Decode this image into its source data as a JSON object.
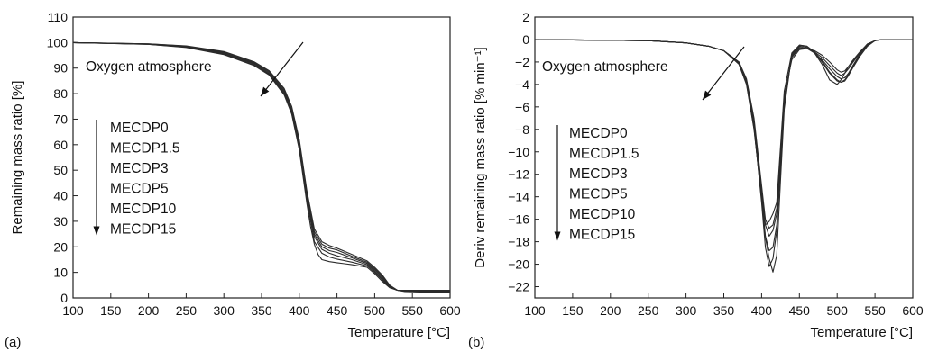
{
  "chart_data": [
    {
      "type": "line",
      "panel_label": "(a)",
      "xlabel": "Temperature [°C]",
      "ylabel": "Remaining mass ratio [%]",
      "xlim": [
        100,
        600
      ],
      "ylim": [
        0,
        110
      ],
      "xticks": [
        100,
        150,
        200,
        250,
        300,
        350,
        400,
        450,
        500,
        550,
        600
      ],
      "yticks": [
        0,
        10,
        20,
        30,
        40,
        50,
        60,
        70,
        80,
        90,
        100,
        110
      ],
      "grid": false,
      "annotation": "Oxygen atmosphere",
      "legend_placement": "left-middle",
      "legend_entries": [
        "MECDP0",
        "MECDP1.5",
        "MECDP3",
        "MECDP5",
        "MECDP10",
        "MECDP15"
      ],
      "line_color": "#2b2b2b",
      "series": [
        {
          "x": [
            100,
            200,
            250,
            300,
            340,
            360,
            380,
            390,
            400,
            410,
            420,
            430,
            440,
            450,
            470,
            490,
            500,
            510,
            520,
            530,
            540,
            560,
            600
          ],
          "y": [
            100,
            99.5,
            98.7,
            96.5,
            92.5,
            89,
            82,
            75,
            62,
            42,
            27,
            22,
            20.5,
            19.5,
            17,
            14.5,
            12,
            9,
            5,
            3,
            2.5,
            2.3,
            2.2
          ]
        },
        {
          "x": [
            100,
            200,
            250,
            300,
            340,
            360,
            380,
            390,
            400,
            410,
            420,
            430,
            440,
            450,
            470,
            490,
            500,
            510,
            520,
            530,
            540,
            560,
            600
          ],
          "y": [
            100,
            99.5,
            98.6,
            96.3,
            92.2,
            88.6,
            81.5,
            74,
            61,
            41,
            26,
            21,
            19.5,
            18.8,
            16.3,
            14,
            11.5,
            8.5,
            4.8,
            3,
            2.6,
            2.4,
            2.3
          ]
        },
        {
          "x": [
            100,
            200,
            250,
            300,
            340,
            360,
            380,
            390,
            400,
            410,
            420,
            430,
            440,
            450,
            470,
            490,
            500,
            510,
            520,
            530,
            540,
            560,
            600
          ],
          "y": [
            100,
            99.4,
            98.5,
            96,
            91.9,
            88.2,
            81,
            73.5,
            60,
            40,
            25,
            20,
            18.5,
            17.8,
            15.7,
            13.5,
            11,
            8,
            4.5,
            3,
            2.7,
            2.6,
            2.5
          ]
        },
        {
          "x": [
            100,
            200,
            250,
            300,
            340,
            360,
            380,
            390,
            400,
            410,
            420,
            430,
            440,
            450,
            470,
            490,
            500,
            510,
            520,
            530,
            540,
            560,
            600
          ],
          "y": [
            100,
            99.4,
            98.4,
            95.8,
            91.6,
            87.8,
            80.5,
            73,
            59,
            39.5,
            24,
            19,
            17.5,
            16.5,
            15,
            13,
            10.5,
            7.5,
            4.3,
            3,
            2.8,
            2.7,
            2.7
          ]
        },
        {
          "x": [
            100,
            200,
            250,
            300,
            340,
            360,
            380,
            390,
            400,
            410,
            420,
            430,
            440,
            450,
            470,
            490,
            500,
            510,
            520,
            530,
            540,
            560,
            600
          ],
          "y": [
            100,
            99.3,
            98.2,
            95.5,
            91.2,
            87.5,
            80,
            72.5,
            58.5,
            38.5,
            22,
            17.5,
            16,
            15.2,
            14,
            12.5,
            10,
            7,
            4.2,
            3,
            2.9,
            2.8,
            2.8
          ]
        },
        {
          "x": [
            100,
            200,
            250,
            300,
            340,
            360,
            380,
            390,
            400,
            410,
            415,
            420,
            425,
            430,
            440,
            450,
            470,
            490,
            500,
            510,
            520,
            530,
            540,
            560,
            600
          ],
          "y": [
            100,
            99.3,
            98.1,
            95.3,
            91,
            87.3,
            79.5,
            72,
            58,
            37,
            28,
            21,
            17,
            15,
            14.2,
            13.8,
            13,
            12,
            9.5,
            6.5,
            4,
            3,
            3,
            3,
            3
          ]
        }
      ]
    },
    {
      "type": "line",
      "panel_label": "(b)",
      "xlabel": "Temperature [°C]",
      "ylabel": "Deriv remaining mass ratio [% min⁻¹]",
      "xlim": [
        100,
        600
      ],
      "ylim": [
        -23,
        2
      ],
      "xticks": [
        100,
        150,
        200,
        250,
        300,
        350,
        400,
        450,
        500,
        550,
        600
      ],
      "yticks": [
        2,
        0,
        -2,
        -4,
        -6,
        -8,
        -10,
        -12,
        -14,
        -16,
        -18,
        -20,
        -22
      ],
      "grid": false,
      "annotation": "Oxygen atmosphere",
      "legend_placement": "left-middle",
      "legend_entries": [
        "MECDP0",
        "MECDP1.5",
        "MECDP3",
        "MECDP5",
        "MECDP10",
        "MECDP15"
      ],
      "line_color": "#2b2b2b",
      "series": [
        {
          "x": [
            100,
            250,
            300,
            330,
            350,
            370,
            380,
            390,
            400,
            405,
            410,
            415,
            420,
            425,
            430,
            440,
            450,
            460,
            470,
            480,
            490,
            500,
            505,
            510,
            515,
            520,
            530,
            540,
            550,
            560,
            600
          ],
          "y": [
            0,
            -0.1,
            -0.3,
            -0.6,
            -1,
            -2,
            -3.5,
            -7,
            -13,
            -16,
            -16.8,
            -16.5,
            -15,
            -10,
            -5,
            -1.8,
            -0.9,
            -0.8,
            -1,
            -1.4,
            -2,
            -2.7,
            -2.9,
            -2.8,
            -2.4,
            -2,
            -1.2,
            -0.4,
            -0.1,
            0,
            0
          ]
        },
        {
          "x": [
            100,
            250,
            300,
            330,
            350,
            370,
            380,
            390,
            400,
            405,
            410,
            415,
            420,
            425,
            430,
            440,
            450,
            460,
            470,
            480,
            490,
            500,
            505,
            510,
            515,
            520,
            530,
            540,
            550,
            560,
            600
          ],
          "y": [
            0,
            -0.1,
            -0.3,
            -0.6,
            -1,
            -2,
            -3.6,
            -7.2,
            -13.5,
            -16.5,
            -17.5,
            -17,
            -15.5,
            -10.5,
            -5.2,
            -1.6,
            -0.8,
            -0.8,
            -1.1,
            -1.6,
            -2.3,
            -3,
            -3.2,
            -3,
            -2.6,
            -2.1,
            -1.2,
            -0.4,
            -0.1,
            0,
            0
          ]
        },
        {
          "x": [
            100,
            250,
            300,
            330,
            350,
            370,
            380,
            390,
            400,
            405,
            410,
            415,
            420,
            425,
            430,
            440,
            450,
            460,
            470,
            480,
            490,
            500,
            505,
            510,
            515,
            520,
            530,
            540,
            550,
            560,
            600
          ],
          "y": [
            0,
            -0.1,
            -0.3,
            -0.6,
            -1,
            -2.1,
            -3.7,
            -7.5,
            -14,
            -17.5,
            -18.8,
            -18.5,
            -16.5,
            -11,
            -5.5,
            -1.5,
            -0.7,
            -0.8,
            -1.2,
            -1.8,
            -2.6,
            -3.3,
            -3.5,
            -3.4,
            -3,
            -2.4,
            -1.3,
            -0.5,
            -0.1,
            0,
            0
          ]
        },
        {
          "x": [
            100,
            250,
            300,
            330,
            350,
            370,
            380,
            390,
            400,
            405,
            410,
            415,
            420,
            425,
            430,
            440,
            450,
            460,
            470,
            480,
            490,
            500,
            505,
            510,
            515,
            520,
            530,
            540,
            550,
            560,
            600
          ],
          "y": [
            0,
            -0.1,
            -0.3,
            -0.6,
            -1,
            -2.1,
            -3.8,
            -7.7,
            -14.5,
            -18.5,
            -20.2,
            -19.5,
            -17,
            -11.5,
            -5.8,
            -1.4,
            -0.6,
            -0.7,
            -1.2,
            -2,
            -3,
            -3.7,
            -3.8,
            -3.6,
            -3.1,
            -2.5,
            -1.4,
            -0.5,
            -0.1,
            0,
            0
          ]
        },
        {
          "x": [
            100,
            250,
            300,
            330,
            350,
            370,
            380,
            390,
            400,
            405,
            410,
            415,
            420,
            425,
            430,
            440,
            450,
            460,
            470,
            480,
            490,
            500,
            505,
            510,
            515,
            520,
            530,
            540,
            550,
            560,
            600
          ],
          "y": [
            0,
            -0.1,
            -0.3,
            -0.6,
            -1,
            -2.2,
            -3.9,
            -7.9,
            -14.2,
            -17.6,
            -19.5,
            -20.7,
            -19.2,
            -12.5,
            -6.2,
            -1.3,
            -0.5,
            -0.6,
            -1.1,
            -1.9,
            -2.9,
            -3.6,
            -3.8,
            -3.7,
            -3.2,
            -2.6,
            -1.5,
            -0.6,
            -0.1,
            0,
            0
          ]
        },
        {
          "x": [
            100,
            250,
            300,
            330,
            350,
            370,
            380,
            390,
            400,
            405,
            410,
            415,
            420,
            425,
            430,
            440,
            450,
            460,
            470,
            480,
            490,
            500,
            505,
            510,
            515,
            520,
            530,
            540,
            550,
            560,
            600
          ],
          "y": [
            0,
            -0.1,
            -0.3,
            -0.6,
            -1,
            -2.2,
            -4,
            -8,
            -14,
            -16.5,
            -16.2,
            -15.5,
            -14.5,
            -9.5,
            -4.6,
            -1.2,
            -0.5,
            -0.6,
            -1.2,
            -2.2,
            -3.6,
            -4,
            -3.6,
            -3,
            -2.4,
            -1.9,
            -1.1,
            -0.4,
            -0.1,
            0,
            0
          ]
        }
      ]
    }
  ]
}
